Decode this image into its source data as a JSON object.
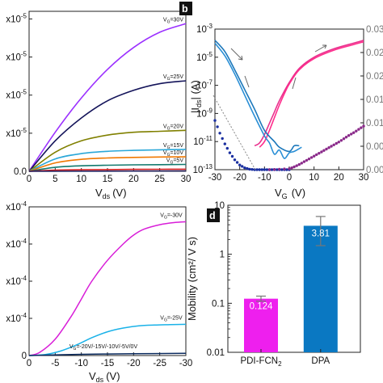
{
  "figure": {
    "panel_b_label": "b",
    "panel_d_label": "d"
  },
  "chart_data": [
    {
      "id": "a",
      "type": "line",
      "xlabel_main": "V",
      "xlabel_sub": "ds",
      "xlabel_unit": "(V)",
      "ylabel": "",
      "xlim": [
        0,
        30
      ],
      "ylim": [
        0,
        8.4e-05
      ],
      "x_ticks": [
        0,
        5,
        10,
        15,
        20,
        25,
        30
      ],
      "y_ticks": [
        {
          "value": 0,
          "label": "0.0"
        },
        {
          "value": 2e-05,
          "label": "x10-5"
        },
        {
          "value": 4e-05,
          "label": "x10-5"
        },
        {
          "value": 6e-05,
          "label": "x10-5"
        },
        {
          "value": 8e-05,
          "label": "x10-5"
        }
      ],
      "series": [
        {
          "name": "VG=30V",
          "color": "#9b30ff",
          "x": [
            0,
            5,
            10,
            15,
            20,
            25,
            30
          ],
          "values": [
            0,
            2.05e-05,
            3.85e-05,
            5.35e-05,
            6.5e-05,
            7.3e-05,
            7.75e-05
          ]
        },
        {
          "name": "VG=25V",
          "color": "#14145a",
          "x": [
            0,
            5,
            10,
            15,
            20,
            25,
            30
          ],
          "values": [
            0,
            1.6e-05,
            2.8e-05,
            3.7e-05,
            4.25e-05,
            4.6e-05,
            4.75e-05
          ]
        },
        {
          "name": "VG=20V",
          "color": "#808000",
          "x": [
            0,
            5,
            10,
            15,
            20,
            25,
            30
          ],
          "values": [
            0,
            1e-05,
            1.6e-05,
            1.9e-05,
            2.05e-05,
            2.1e-05,
            2.15e-05
          ]
        },
        {
          "name": "VG=15V",
          "color": "#2aa7d8",
          "x": [
            0,
            5,
            10,
            15,
            20,
            25,
            30
          ],
          "values": [
            0,
            6.5e-06,
            9.3e-06,
            1.05e-05,
            1.1e-05,
            1.13e-05,
            1.15e-05
          ]
        },
        {
          "name": "VG=10V",
          "color": "#f07800",
          "x": [
            0,
            5,
            10,
            15,
            20,
            25,
            30
          ],
          "values": [
            0,
            4.4e-06,
            6.3e-06,
            7e-06,
            7.3e-06,
            7.5e-06,
            7.6e-06
          ]
        },
        {
          "name": "VG=5V",
          "color": "#127a6e",
          "x": [
            0,
            5,
            10,
            15,
            20,
            25,
            30
          ],
          "values": [
            0,
            2.1e-06,
            2.9e-06,
            3.2e-06,
            3.4e-06,
            3.5e-06,
            3.6e-06
          ]
        },
        {
          "name": "",
          "color": "#d41d1d",
          "x": [
            0,
            5,
            10,
            15,
            20,
            25,
            30
          ],
          "values": [
            0,
            6e-07,
            8e-07,
            9e-07,
            1e-06,
            1.05e-06,
            1.1e-06
          ]
        },
        {
          "name": "",
          "color": "#202060",
          "x": [
            0,
            30
          ],
          "values": [
            0,
            2e-07
          ]
        }
      ]
    },
    {
      "id": "b",
      "type": "line",
      "xlabel_main": "V",
      "xlabel_sub": "G",
      "xlabel_unit": "(V)",
      "ylabel_left": "|I",
      "ylabel_sub": "ds",
      "ylabel_unit": "| (A)",
      "xlim": [
        -30,
        30
      ],
      "ylim_left_exp": [
        -13,
        -3
      ],
      "ylim_right": [
        0,
        0.03
      ],
      "x_ticks": [
        -30,
        -20,
        -10,
        0,
        10,
        20,
        30
      ],
      "y_left_ticks": [
        {
          "exp": -3,
          "base": "10",
          "sup": "-3"
        },
        {
          "exp": -5,
          "base": "10",
          "sup": "-5"
        },
        {
          "exp": -7,
          "base": "10",
          "sup": "-7"
        },
        {
          "exp": -9,
          "base": "10",
          "sup": "-9"
        },
        {
          "exp": -11,
          "base": "10",
          "sup": "-11"
        },
        {
          "exp": -13,
          "base": "10",
          "sup": "-13"
        }
      ],
      "y_right_ticks": [
        {
          "value": 0.03,
          "label": "0.03"
        },
        {
          "value": 0.025,
          "label": "0.02"
        },
        {
          "value": 0.02,
          "label": "0.02"
        },
        {
          "value": 0.015,
          "label": "0.01"
        },
        {
          "value": 0.01,
          "label": "0.01"
        },
        {
          "value": 0.005,
          "label": "0.00"
        },
        {
          "value": 0,
          "label": "0.00"
        }
      ],
      "series": [
        {
          "name": "",
          "axis": "log",
          "color": "#e8318e",
          "x": [
            -14,
            -12,
            -10,
            -8,
            -6,
            -4,
            0,
            4,
            10,
            18,
            26,
            30
          ],
          "values": [
            -11.3,
            -11.1,
            -10.5,
            -9.7,
            -8.9,
            -8.1,
            -6.8,
            -5.8,
            -5.0,
            -4.4,
            -4.0,
            -3.8
          ]
        },
        {
          "name": "",
          "axis": "log",
          "color": "#ff2d8c",
          "x": [
            -12,
            -10,
            -8,
            -6,
            -4,
            -2,
            0,
            4,
            10,
            18,
            26,
            30
          ],
          "values": [
            -11.4,
            -11.0,
            -10.2,
            -9.3,
            -8.4,
            -7.6,
            -6.9,
            -5.9,
            -5.1,
            -4.5,
            -4.1,
            -3.9
          ]
        },
        {
          "name": "",
          "axis": "log",
          "color": "#1c78bb",
          "x": [
            -30,
            -26,
            -22,
            -18,
            -14,
            -10,
            -6,
            -4,
            0,
            2,
            4
          ],
          "values": [
            -3.8,
            -4.6,
            -5.9,
            -7.3,
            -8.7,
            -10.2,
            -11.0,
            -11.4,
            -11.7,
            -11.3,
            -11.3
          ]
        },
        {
          "name": "",
          "axis": "log",
          "color": "#2a8fd6",
          "x": [
            -30,
            -26,
            -22,
            -18,
            -14,
            -10,
            -8,
            -6,
            -4,
            -2,
            0,
            2,
            5
          ],
          "values": [
            -4.0,
            -4.9,
            -6.2,
            -7.7,
            -9.2,
            -10.6,
            -11.1,
            -11.9,
            -11.6,
            -12.2,
            -11.8,
            -11.7,
            -11.4
          ]
        },
        {
          "name": "",
          "axis": "lin",
          "color": "#1a2fa0",
          "x": [
            -30,
            -28,
            -26,
            -24,
            -22,
            -20,
            -18,
            -16,
            -14,
            -12,
            -10,
            -8,
            -6,
            -4,
            -2,
            0
          ],
          "values": [
            0.0105,
            0.0078,
            0.0055,
            0.0036,
            0.0021,
            0.001,
            0.0004,
            0.0001,
            0,
            0,
            0,
            0,
            0,
            0,
            0,
            0
          ]
        },
        {
          "name": "",
          "axis": "lin",
          "color": "#8a2a8a",
          "x": [
            -8,
            -4,
            0,
            2,
            4,
            6,
            8,
            10,
            12,
            14,
            16,
            18,
            20,
            22,
            24,
            26,
            28,
            30
          ],
          "values": [
            0,
            0.0001,
            0.0002,
            0.0006,
            0.0011,
            0.0017,
            0.0023,
            0.0029,
            0.0035,
            0.0041,
            0.0047,
            0.0053,
            0.0059,
            0.0066,
            0.0073,
            0.0079,
            0.0086,
            0.0093
          ]
        }
      ]
    },
    {
      "id": "c",
      "type": "line",
      "xlabel_main": "V",
      "xlabel_sub": "ds",
      "xlabel_unit": "(V)",
      "ylabel": "",
      "xlim": [
        0,
        -30
      ],
      "ylim": [
        0,
        1
      ],
      "x_ticks": [
        {
          "value": 0,
          "label": "0"
        },
        {
          "value": -5,
          "label": "-5"
        },
        {
          "value": -10,
          "label": "-10"
        },
        {
          "value": -15,
          "label": "-15"
        },
        {
          "value": -20,
          "label": "-20"
        },
        {
          "value": -25,
          "label": "-25"
        },
        {
          "value": -30,
          "label": "-30"
        }
      ],
      "y_ticks": [
        {
          "value": 0,
          "label": "0"
        },
        {
          "value": 0.25,
          "label": "x10-4"
        },
        {
          "value": 0.5,
          "label": "x10-4"
        },
        {
          "value": 0.75,
          "label": "x10-4"
        },
        {
          "value": 1,
          "label": "x10-4"
        }
      ],
      "series": [
        {
          "name": "VG=-30V",
          "color": "#d81ed8",
          "x": [
            0,
            -2,
            -5,
            -8,
            -10,
            -12,
            -15,
            -18,
            -20,
            -22,
            -25,
            -28,
            -30
          ],
          "values": [
            0,
            0.02,
            0.11,
            0.26,
            0.38,
            0.5,
            0.64,
            0.75,
            0.81,
            0.85,
            0.88,
            0.895,
            0.9
          ]
        },
        {
          "name": "VG=-25V",
          "color": "#1ab2e8",
          "x": [
            0,
            -3,
            -6,
            -9,
            -12,
            -15,
            -18,
            -21,
            -24,
            -27,
            -30
          ],
          "values": [
            0,
            0.006,
            0.03,
            0.07,
            0.12,
            0.16,
            0.185,
            0.2,
            0.205,
            0.208,
            0.21
          ]
        },
        {
          "name": "VG=-20V/-15V/-10V/-5V/0V",
          "color": "#0a2a5e",
          "x": [
            0,
            -10,
            -20,
            -30
          ],
          "values": [
            0,
            0.008,
            0.012,
            0.015
          ]
        }
      ]
    },
    {
      "id": "d",
      "type": "bar",
      "ylabel": "Mobility (cm²/ V s)",
      "yscale": "log",
      "ylim": [
        0.01,
        10
      ],
      "y_ticks": [
        {
          "value": 10,
          "label": "10"
        },
        {
          "value": 1,
          "label": "1"
        },
        {
          "value": 0.1,
          "label": "0.1"
        },
        {
          "value": 0.01,
          "label": "0.01"
        }
      ],
      "categories": [
        {
          "main": "PDI-FCN",
          "sub": "2"
        },
        {
          "main": "DPA",
          "sub": ""
        }
      ],
      "values": [
        0.124,
        3.81
      ],
      "value_labels": [
        "0.124",
        "3.81"
      ],
      "error_low": [
        0.11,
        1.5
      ],
      "error_high": [
        0.14,
        5.9
      ],
      "colors": [
        "#ee1fee",
        "#0a78c2"
      ]
    }
  ]
}
